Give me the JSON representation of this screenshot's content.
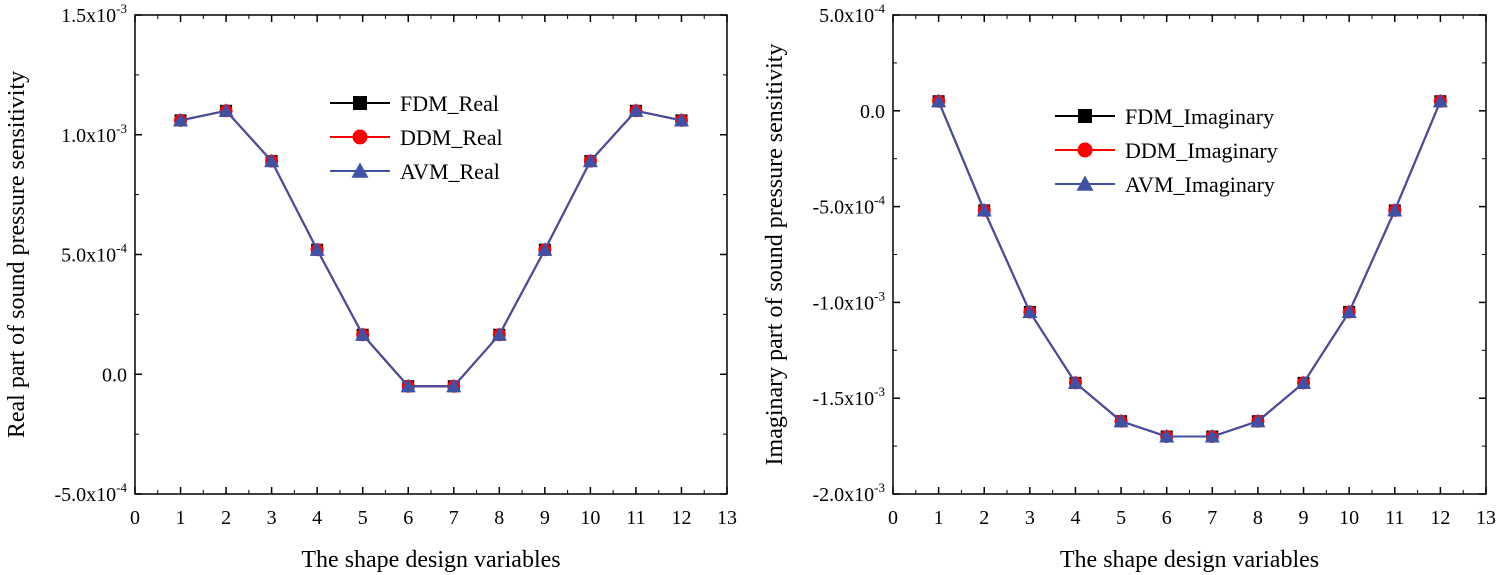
{
  "chart_data": [
    {
      "type": "line",
      "xlabel": "The shape design variables",
      "ylabel": "Real part of sound pressure sensitivity",
      "xlim": [
        0,
        13
      ],
      "ylim": [
        -0.0005,
        0.0015
      ],
      "x_ticks": [
        0,
        1,
        2,
        3,
        4,
        5,
        6,
        7,
        8,
        9,
        10,
        11,
        12,
        13
      ],
      "y_ticks": [
        {
          "value": 0.0015,
          "mantissa": "1.5x10",
          "exp": "-3"
        },
        {
          "value": 0.001,
          "mantissa": "1.0x10",
          "exp": "-3"
        },
        {
          "value": 0.0005,
          "mantissa": "5.0x10",
          "exp": "-4"
        },
        {
          "value": 0,
          "mantissa": "0.0",
          "exp": ""
        },
        {
          "value": -0.0005,
          "mantissa": "-5.0x10",
          "exp": "-4"
        }
      ],
      "legend_position": "top-center",
      "x": [
        1,
        2,
        3,
        4,
        5,
        6,
        7,
        8,
        9,
        10,
        11,
        12
      ],
      "series": [
        {
          "name": "FDM_Real",
          "marker": "square",
          "color": "#000000",
          "values": [
            0.00106,
            0.0011,
            0.00089,
            0.00052,
            0.000165,
            -5e-05,
            -5e-05,
            0.000165,
            0.00052,
            0.00089,
            0.0011,
            0.00106
          ]
        },
        {
          "name": "DDM_Real",
          "marker": "circle",
          "color": "#ff0000",
          "values": [
            0.00106,
            0.0011,
            0.00089,
            0.00052,
            0.000165,
            -5e-05,
            -5e-05,
            0.000165,
            0.00052,
            0.00089,
            0.0011,
            0.00106
          ]
        },
        {
          "name": "AVM_Real",
          "marker": "triangle",
          "color": "#3f51a5",
          "values": [
            0.00106,
            0.0011,
            0.00089,
            0.00052,
            0.000165,
            -5e-05,
            -5e-05,
            0.000165,
            0.00052,
            0.00089,
            0.0011,
            0.00106
          ]
        }
      ]
    },
    {
      "type": "line",
      "xlabel": "The shape design variables",
      "ylabel": "Imaginary part of sound pressure sensitivity",
      "xlim": [
        0,
        13
      ],
      "ylim": [
        -0.002,
        0.0005
      ],
      "x_ticks": [
        0,
        1,
        2,
        3,
        4,
        5,
        6,
        7,
        8,
        9,
        10,
        11,
        12,
        13
      ],
      "y_ticks": [
        {
          "value": 0.0005,
          "mantissa": "5.0x10",
          "exp": "-4"
        },
        {
          "value": 0,
          "mantissa": "0.0",
          "exp": ""
        },
        {
          "value": -0.0005,
          "mantissa": "-5.0x10",
          "exp": "-4"
        },
        {
          "value": -0.001,
          "mantissa": "-1.0x10",
          "exp": "-3"
        },
        {
          "value": -0.0015,
          "mantissa": "-1.5x10",
          "exp": "-3"
        },
        {
          "value": -0.002,
          "mantissa": "-2.0x10",
          "exp": "-3"
        }
      ],
      "legend_position": "top-center",
      "x": [
        1,
        2,
        3,
        4,
        5,
        6,
        7,
        8,
        9,
        10,
        11,
        12
      ],
      "series": [
        {
          "name": "FDM_Imaginary",
          "marker": "square",
          "color": "#000000",
          "values": [
            5e-05,
            -0.00052,
            -0.00105,
            -0.00142,
            -0.00162,
            -0.0017,
            -0.0017,
            -0.00162,
            -0.00142,
            -0.00105,
            -0.00052,
            5e-05
          ]
        },
        {
          "name": "DDM_Imaginary",
          "marker": "circle",
          "color": "#ff0000",
          "values": [
            5e-05,
            -0.00052,
            -0.00105,
            -0.00142,
            -0.00162,
            -0.0017,
            -0.0017,
            -0.00162,
            -0.00142,
            -0.00105,
            -0.00052,
            5e-05
          ]
        },
        {
          "name": "AVM_Imaginary",
          "marker": "triangle",
          "color": "#3f51a5",
          "values": [
            5e-05,
            -0.00052,
            -0.00105,
            -0.00142,
            -0.00162,
            -0.0017,
            -0.0017,
            -0.00162,
            -0.00142,
            -0.00105,
            -0.00052,
            5e-05
          ]
        }
      ]
    }
  ]
}
